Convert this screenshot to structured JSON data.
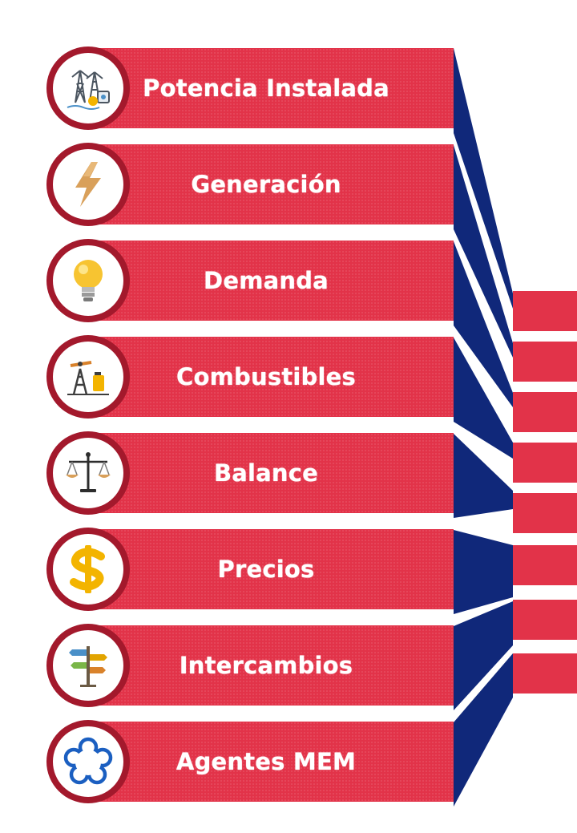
{
  "menu": {
    "items": [
      {
        "label": "Potencia Instalada",
        "icon": "power-tower-icon"
      },
      {
        "label": "Generación",
        "icon": "lightning-bolt-icon"
      },
      {
        "label": "Demanda",
        "icon": "light-bulb-icon"
      },
      {
        "label": "Combustibles",
        "icon": "oil-pump-icon"
      },
      {
        "label": "Balance",
        "icon": "scale-icon"
      },
      {
        "label": "Precios",
        "icon": "dollar-icon"
      },
      {
        "label": "Intercambios",
        "icon": "signpost-icon"
      },
      {
        "label": "Agentes MEM",
        "icon": "flower-outline-icon"
      }
    ]
  },
  "colors": {
    "bar_red": "#e23349",
    "badge_ring": "#a3192c",
    "connector_navy": "#10287a"
  }
}
